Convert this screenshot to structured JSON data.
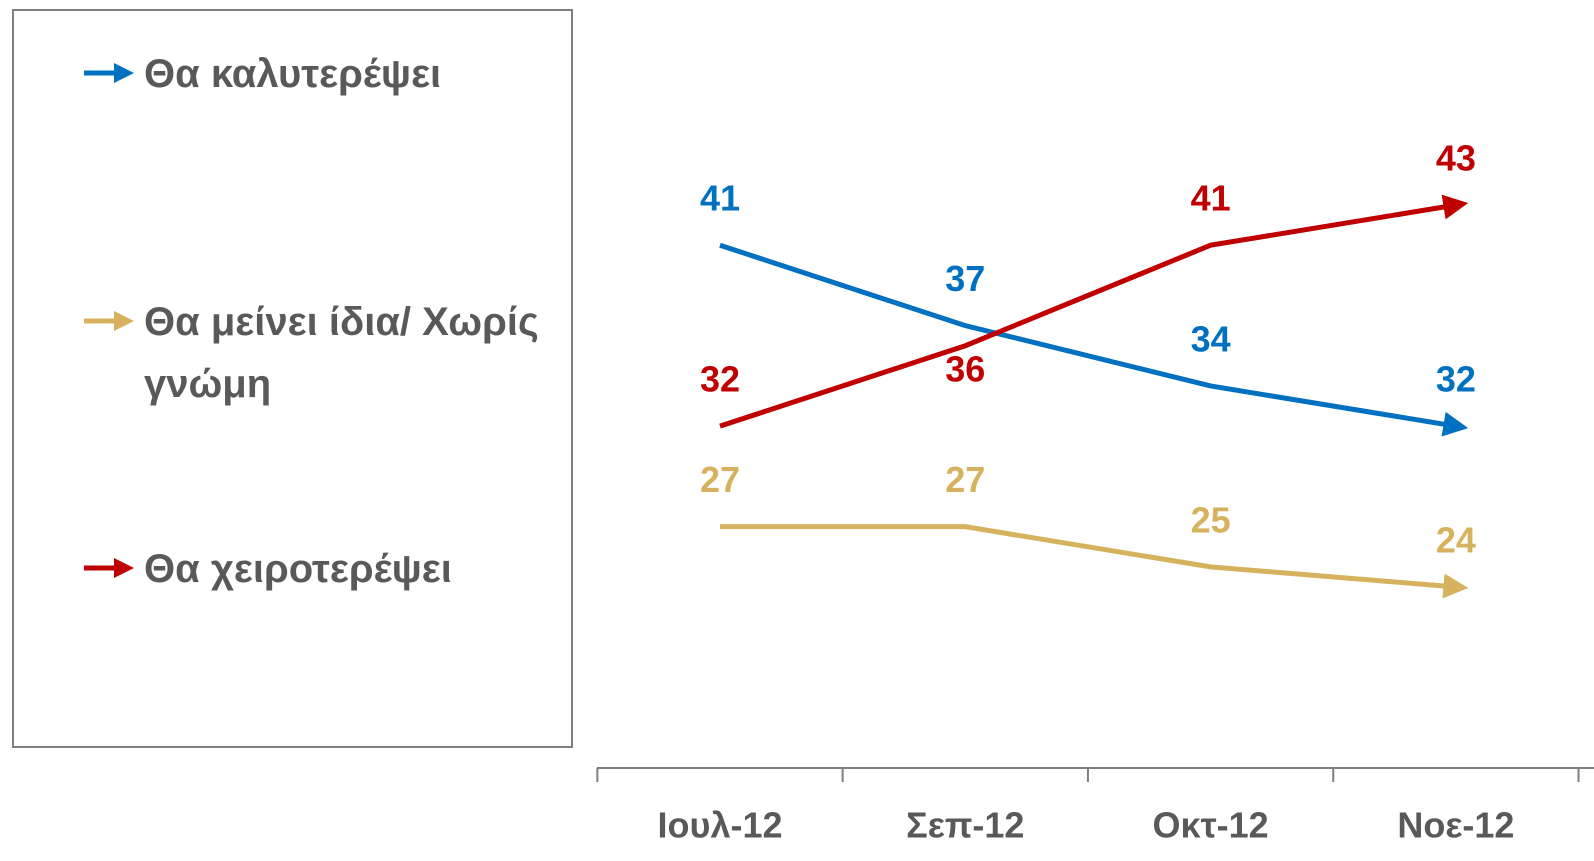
{
  "chart_data": {
    "type": "line",
    "categories": [
      "Ιουλ-12",
      "Σεπ-12",
      "Οκτ-12",
      "Νοε-12"
    ],
    "series": [
      {
        "name": "Θα καλυτερέψει",
        "color": "#0070c0",
        "values": [
          41,
          37,
          34,
          32
        ]
      },
      {
        "name": "Θα μείνει ίδια/ Χωρίς γνώμη",
        "color": "#d6b25e",
        "values": [
          27,
          27,
          25,
          24
        ]
      },
      {
        "name": "Θα χειροτερέψει",
        "color": "#c00000",
        "values": [
          32,
          36,
          41,
          43
        ]
      }
    ],
    "legend": "left"
  }
}
